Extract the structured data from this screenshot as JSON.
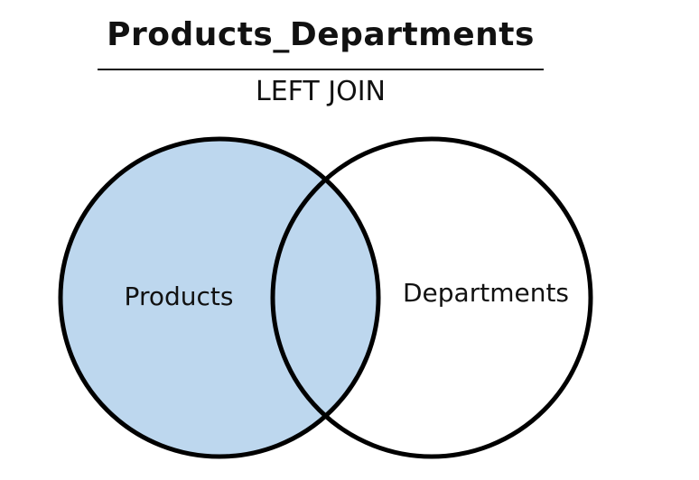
{
  "title": "Products_Departments",
  "subtitle": "LEFT JOIN",
  "sets": {
    "left": {
      "label": "Products",
      "highlighted": true
    },
    "right": {
      "label": "Departments",
      "highlighted": false
    }
  },
  "colors": {
    "highlight_fill": "#bdd7ee",
    "outline": "#000000",
    "background": "#ffffff"
  }
}
